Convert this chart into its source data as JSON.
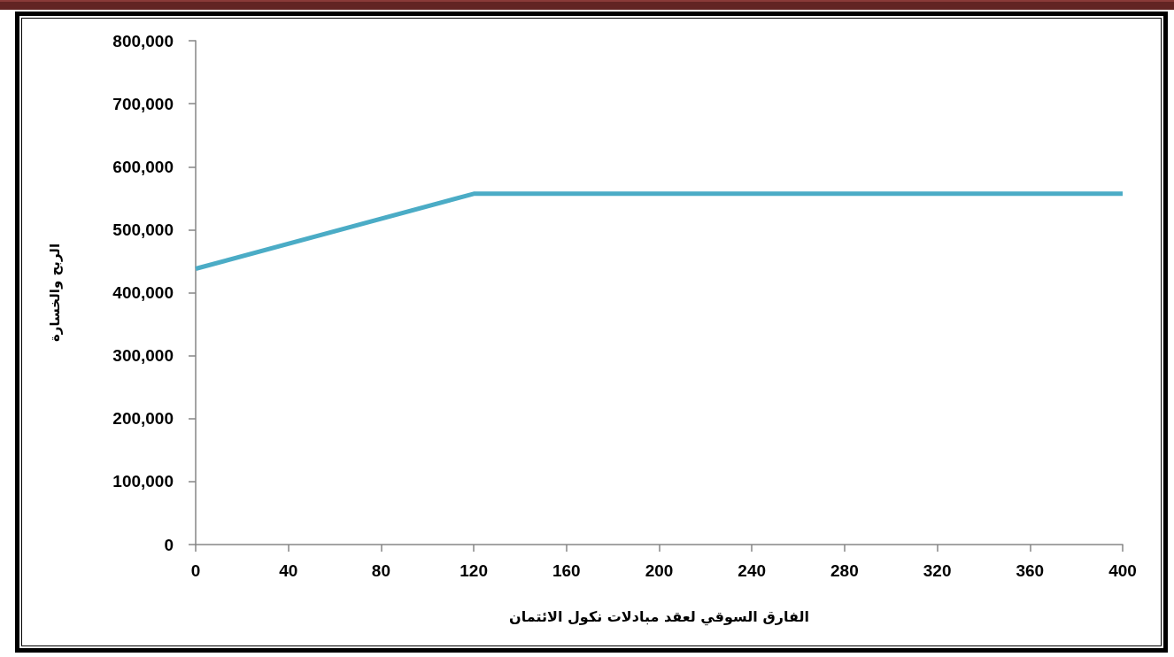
{
  "chart_data": {
    "type": "line",
    "xlabel": "الفارق السوقي لعقد مبادلات نكول الائتمان",
    "ylabel": "الربح والخسارة",
    "x": [
      0,
      120,
      400
    ],
    "series": [
      {
        "color": "#4bacc6",
        "values": [
          438000,
          557000,
          557000
        ]
      }
    ],
    "xlim": [
      0,
      400
    ],
    "xticks": [
      0,
      40,
      80,
      120,
      160,
      200,
      240,
      280,
      320,
      360,
      400
    ],
    "ylim": [
      0,
      800000
    ],
    "yticks": [
      0,
      {
        "value": 100000,
        "label": "100,000"
      },
      {
        "value": 200000,
        "label": "200,000"
      },
      {
        "value": 300000,
        "label": "300,000"
      },
      {
        "value": 400000,
        "label": "400,000"
      },
      {
        "value": 500000,
        "label": "500,000"
      },
      {
        "value": 600000,
        "label": "600,000"
      },
      {
        "value": 700000,
        "label": "700,000"
      },
      {
        "value": 800000,
        "label": "800,000"
      }
    ],
    "marker": "none"
  }
}
